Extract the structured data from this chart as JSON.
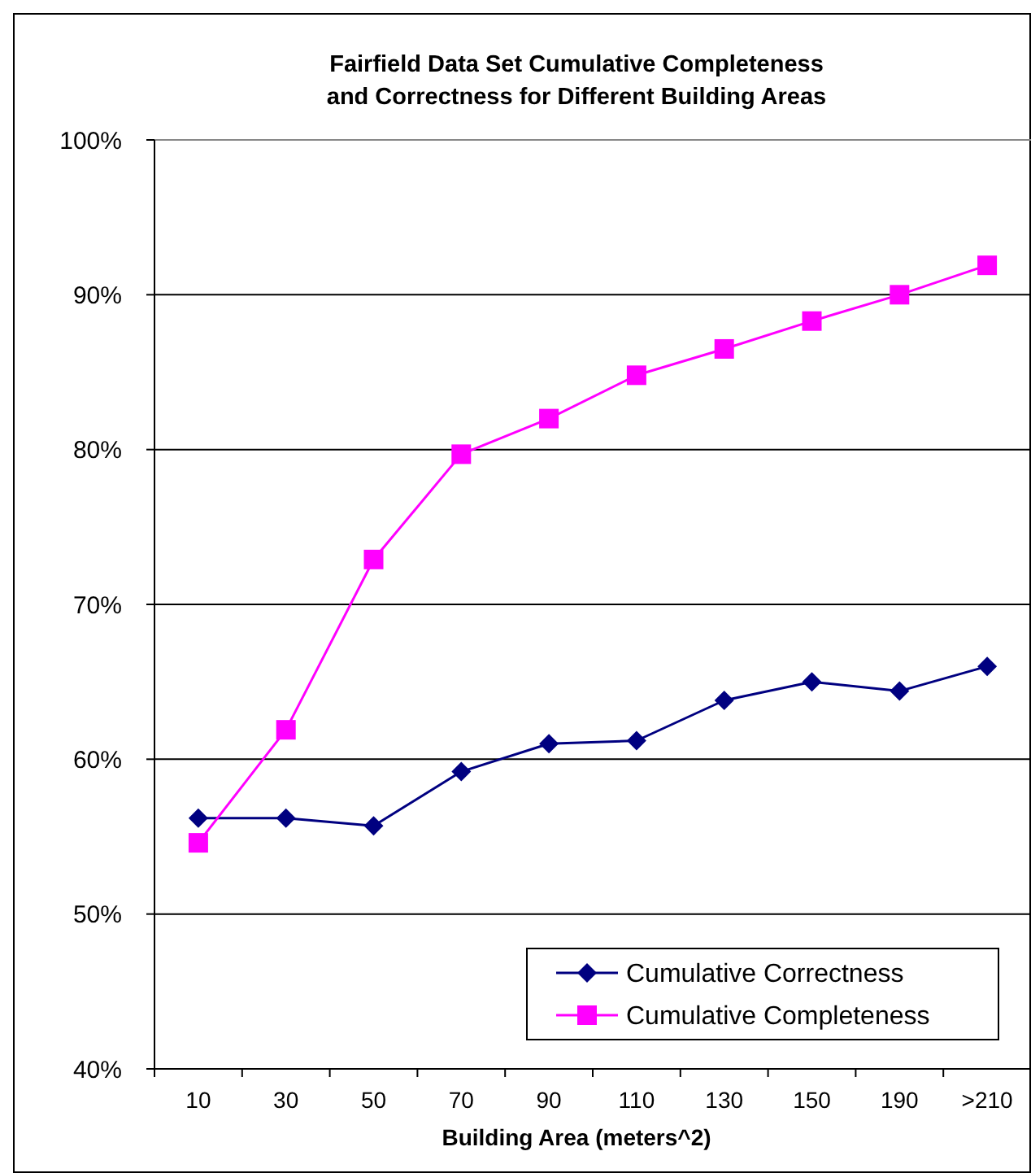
{
  "chart_data": {
    "type": "line",
    "title": "Fairfield Data Set  Cumulative Completeness and Correctness for Different Building Areas",
    "xlabel": "Building Area (meters^2)",
    "categories": [
      "10",
      "30",
      "50",
      "70",
      "90",
      "110",
      "130",
      "150",
      "190",
      ">210"
    ],
    "series": [
      {
        "name": "Cumulative Correctness",
        "color": "#000080",
        "marker": "diamond",
        "values": [
          56.2,
          56.2,
          55.7,
          59.2,
          61.0,
          61.2,
          63.8,
          65.0,
          64.4,
          66.0
        ]
      },
      {
        "name": "Cumulative Completeness",
        "color": "#ff00ff",
        "marker": "square",
        "values": [
          54.6,
          61.9,
          72.9,
          79.7,
          82.0,
          84.8,
          86.5,
          88.3,
          90.0,
          91.9
        ]
      }
    ],
    "ylim": [
      40,
      100
    ],
    "yticks": [
      {
        "value": 40,
        "label": "40%"
      },
      {
        "value": 50,
        "label": "50%"
      },
      {
        "value": 60,
        "label": "60%"
      },
      {
        "value": 70,
        "label": "70%"
      },
      {
        "value": 80,
        "label": "80%"
      },
      {
        "value": 90,
        "label": "90%"
      },
      {
        "value": 100,
        "label": "100%"
      }
    ],
    "grid": "y",
    "legend": "bottom right"
  }
}
